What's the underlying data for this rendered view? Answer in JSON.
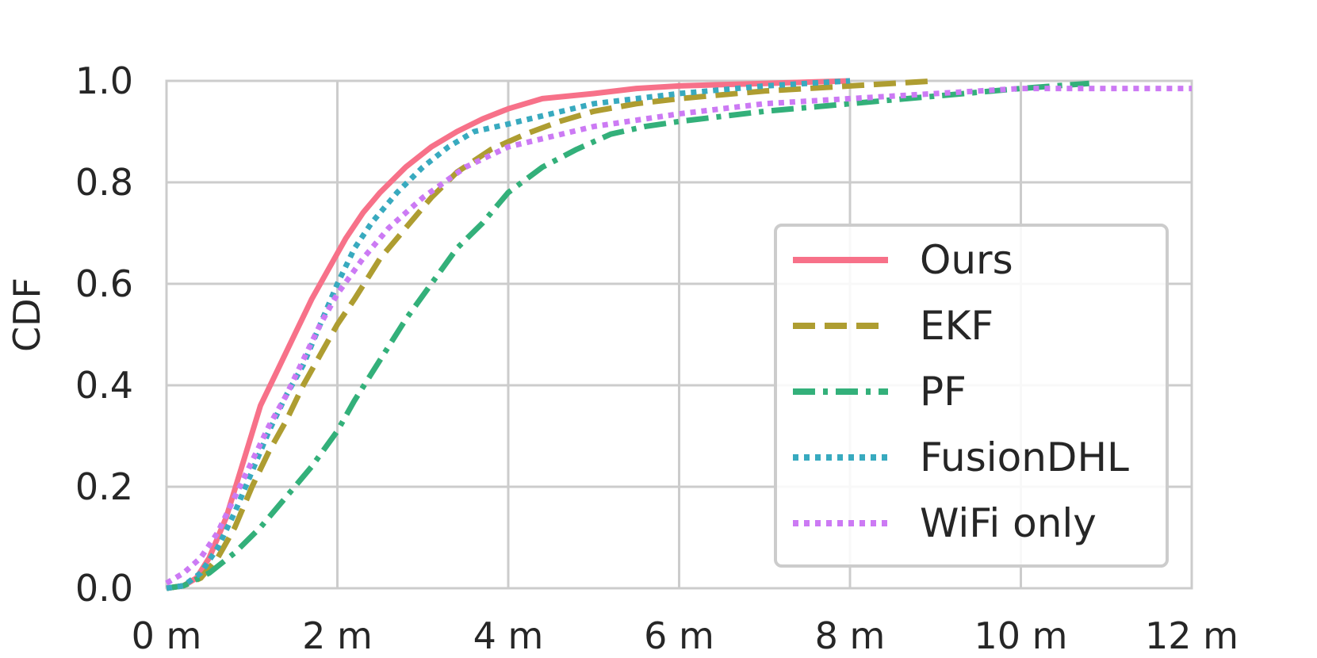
{
  "chart_data": {
    "type": "line",
    "title": "",
    "xlabel": "",
    "ylabel": "CDF",
    "xlim": [
      0,
      12
    ],
    "ylim": [
      0,
      1
    ],
    "grid": true,
    "legend_position": "center-right",
    "x_ticks": [
      0,
      2,
      4,
      6,
      8,
      10,
      12
    ],
    "x_tick_labels": [
      "0 m",
      "2 m",
      "4 m",
      "6 m",
      "8 m",
      "10 m",
      "12 m"
    ],
    "y_ticks": [
      0,
      0.2,
      0.4,
      0.6,
      0.8,
      1.0
    ],
    "y_tick_labels": [
      "0.0",
      "0.2",
      "0.4",
      "0.6",
      "0.8",
      "1.0"
    ],
    "series": [
      {
        "name": "Ours",
        "color": "#f77189",
        "style": "solid",
        "x": [
          0,
          0.2,
          0.35,
          0.5,
          0.7,
          0.9,
          1.1,
          1.3,
          1.5,
          1.7,
          1.9,
          2.1,
          2.3,
          2.5,
          2.8,
          3.1,
          3.4,
          3.7,
          4.0,
          4.4,
          5.0,
          5.5,
          6.0,
          7.0,
          8.0
        ],
        "y": [
          0,
          0.005,
          0.02,
          0.06,
          0.14,
          0.25,
          0.36,
          0.43,
          0.5,
          0.57,
          0.63,
          0.69,
          0.74,
          0.78,
          0.83,
          0.87,
          0.9,
          0.925,
          0.945,
          0.965,
          0.975,
          0.985,
          0.99,
          0.995,
          1.0
        ]
      },
      {
        "name": "EKF",
        "color": "#ae9d31",
        "style": "dashed",
        "x": [
          0,
          0.2,
          0.4,
          0.6,
          0.8,
          1.0,
          1.2,
          1.4,
          1.6,
          1.8,
          2.0,
          2.2,
          2.5,
          2.8,
          3.1,
          3.4,
          3.8,
          4.2,
          4.6,
          5.0,
          5.5,
          6.0,
          7.0,
          8.0,
          9.0
        ],
        "y": [
          0,
          0.005,
          0.02,
          0.06,
          0.12,
          0.2,
          0.27,
          0.33,
          0.4,
          0.46,
          0.52,
          0.57,
          0.65,
          0.71,
          0.77,
          0.82,
          0.865,
          0.895,
          0.92,
          0.94,
          0.955,
          0.965,
          0.98,
          0.99,
          1.0
        ]
      },
      {
        "name": "PF",
        "color": "#33b07a",
        "style": "dashdot",
        "x": [
          0,
          0.2,
          0.5,
          0.8,
          1.1,
          1.4,
          1.7,
          2.0,
          2.2,
          2.5,
          2.8,
          3.1,
          3.4,
          3.7,
          4.0,
          4.4,
          4.8,
          5.2,
          5.6,
          6.0,
          7.0,
          8.0,
          9.0,
          10.0,
          10.8
        ],
        "y": [
          0,
          0.005,
          0.03,
          0.07,
          0.12,
          0.18,
          0.24,
          0.31,
          0.37,
          0.45,
          0.53,
          0.6,
          0.67,
          0.72,
          0.78,
          0.83,
          0.865,
          0.895,
          0.91,
          0.92,
          0.94,
          0.955,
          0.97,
          0.985,
          0.995
        ]
      },
      {
        "name": "FusionDHL",
        "color": "#38aabf",
        "style": "dotted",
        "x": [
          0,
          0.2,
          0.4,
          0.6,
          0.8,
          1.0,
          1.2,
          1.4,
          1.6,
          1.8,
          2.0,
          2.2,
          2.4,
          2.7,
          3.0,
          3.3,
          3.6,
          4.0,
          4.5,
          5.0,
          5.5,
          6.0,
          7.0,
          8.0
        ],
        "y": [
          0,
          0.005,
          0.03,
          0.08,
          0.15,
          0.23,
          0.31,
          0.38,
          0.44,
          0.52,
          0.6,
          0.67,
          0.72,
          0.78,
          0.83,
          0.87,
          0.9,
          0.915,
          0.935,
          0.955,
          0.965,
          0.975,
          0.99,
          1.0
        ]
      },
      {
        "name": "WiFi only",
        "color": "#cc7af4",
        "style": "dotted",
        "x": [
          0,
          0.2,
          0.4,
          0.6,
          0.8,
          1.0,
          1.2,
          1.4,
          1.6,
          1.8,
          2.0,
          2.3,
          2.6,
          3.0,
          3.5,
          4.0,
          4.5,
          5.0,
          6.0,
          7.0,
          8.0,
          9.0,
          10.0,
          11.0,
          12.0
        ],
        "y": [
          0.01,
          0.03,
          0.06,
          0.11,
          0.18,
          0.25,
          0.32,
          0.38,
          0.45,
          0.52,
          0.58,
          0.65,
          0.71,
          0.77,
          0.83,
          0.87,
          0.89,
          0.91,
          0.935,
          0.955,
          0.965,
          0.975,
          0.985,
          0.985,
          0.985
        ]
      }
    ]
  }
}
